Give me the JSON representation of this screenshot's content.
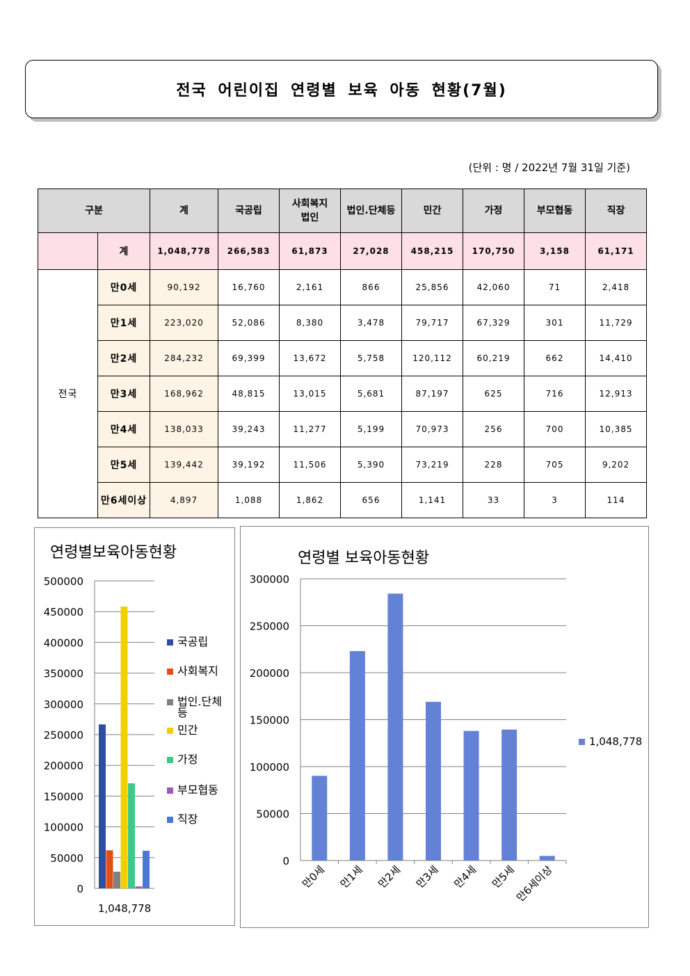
{
  "title": "전국 어린이집 연령별 보육 아동 현황(7월)",
  "unit_note": "(단위 : 명 / 2022년 7월 31일 기준)",
  "table": {
    "header": {
      "category": "구분",
      "columns": [
        "계",
        "국공립",
        "사회복지\n법인",
        "법인.단체등",
        "민간",
        "가정",
        "부모협동",
        "직장"
      ]
    },
    "total_row": {
      "label": "계",
      "values": [
        "1,048,778",
        "266,583",
        "61,873",
        "27,028",
        "458,215",
        "170,750",
        "3,158",
        "61,171"
      ]
    },
    "region": "전국",
    "rows": [
      {
        "age": "만0세",
        "values": [
          "90,192",
          "16,760",
          "2,161",
          "866",
          "25,856",
          "42,060",
          "71",
          "2,418"
        ]
      },
      {
        "age": "만1세",
        "values": [
          "223,020",
          "52,086",
          "8,380",
          "3,478",
          "79,717",
          "67,329",
          "301",
          "11,729"
        ]
      },
      {
        "age": "만2세",
        "values": [
          "284,232",
          "69,399",
          "13,672",
          "5,758",
          "120,112",
          "60,219",
          "662",
          "14,410"
        ]
      },
      {
        "age": "만3세",
        "values": [
          "168,962",
          "48,815",
          "13,015",
          "5,681",
          "87,197",
          "625",
          "716",
          "12,913"
        ]
      },
      {
        "age": "만4세",
        "values": [
          "138,033",
          "39,243",
          "11,277",
          "5,199",
          "70,973",
          "256",
          "700",
          "10,385"
        ]
      },
      {
        "age": "만5세",
        "values": [
          "139,442",
          "39,192",
          "11,506",
          "5,390",
          "73,219",
          "228",
          "705",
          "9,202"
        ]
      },
      {
        "age": "만6세이상",
        "values": [
          "4,897",
          "1,088",
          "1,862",
          "656",
          "1,141",
          "33",
          "3",
          "114"
        ]
      }
    ]
  },
  "chart_data": [
    {
      "type": "bar",
      "title": "연령별보육아동현황",
      "categories": [
        "1,048,778"
      ],
      "series": [
        {
          "name": "국공립",
          "color": "#2e4ea6",
          "values": [
            266583
          ]
        },
        {
          "name": "사회복지",
          "color": "#e0501c",
          "values": [
            61873
          ]
        },
        {
          "name": "법인.단체등",
          "color": "#808080",
          "values": [
            27028
          ]
        },
        {
          "name": "민간",
          "color": "#f2d000",
          "values": [
            458215
          ]
        },
        {
          "name": "가정",
          "color": "#3ec98a",
          "values": [
            170750
          ]
        },
        {
          "name": "부모협동",
          "color": "#9b59b6",
          "values": [
            3158
          ]
        },
        {
          "name": "직장",
          "color": "#4a78d6",
          "values": [
            61171
          ]
        }
      ],
      "yticks": [
        "0",
        "50000",
        "100000",
        "150000",
        "200000",
        "250000",
        "300000",
        "350000",
        "400000",
        "450000",
        "500000"
      ],
      "ylim": [
        0,
        500000
      ],
      "grid": true,
      "legend": "right"
    },
    {
      "type": "bar",
      "title": "연령별 보육아동현황",
      "categories": [
        "만0세",
        "만1세",
        "만2세",
        "만3세",
        "만4세",
        "만5세",
        "만6세이상"
      ],
      "series": [
        {
          "name": "1,048,778",
          "color": "#6382d6",
          "values": [
            90192,
            223020,
            284232,
            168962,
            138033,
            139442,
            4897
          ]
        }
      ],
      "yticks": [
        "0",
        "50000",
        "100000",
        "150000",
        "200000",
        "250000",
        "300000"
      ],
      "ylim": [
        0,
        300000
      ],
      "grid": true,
      "legend": "right"
    }
  ]
}
